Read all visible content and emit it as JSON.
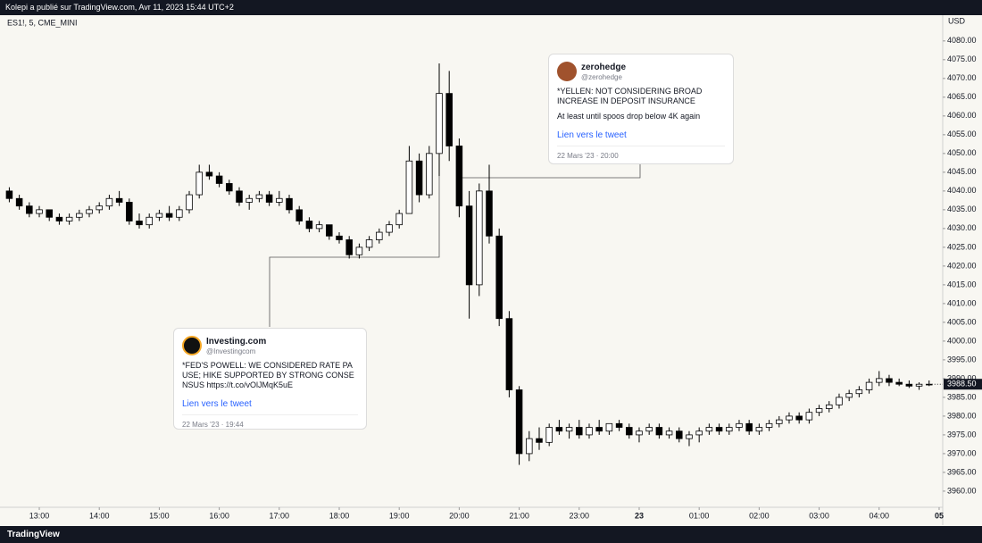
{
  "header": {
    "text": "Kolepi a publié sur TradingView.com, Avr 11, 2023 15:44 UTC+2"
  },
  "footer": {
    "brand": "TradingView"
  },
  "chart_data": {
    "type": "candlestick",
    "title": "ES1!, 5, CME_MINI",
    "currency": "USD",
    "up_color": "#ffffff",
    "down_color": "#000000",
    "outline_color": "#000000",
    "open": [
      4040,
      4038,
      4036,
      4034,
      4035,
      4033,
      4032,
      4033,
      4034,
      4035,
      4036,
      4038,
      4037,
      4032,
      4031,
      4033,
      4034,
      4033,
      4035,
      4039,
      4045,
      4044,
      4042,
      4040,
      4037,
      4038,
      4039,
      4037,
      4038,
      4035,
      4032,
      4030,
      4031,
      4028,
      4027,
      4023,
      4025,
      4027,
      4029,
      4031,
      4034,
      4048,
      4039,
      4050,
      4066,
      4052,
      4036,
      4015,
      4040,
      4028,
      4006,
      3987,
      3970,
      3974,
      3973,
      3977,
      3976,
      3977,
      3975,
      3977,
      3976,
      3978,
      3977,
      3975,
      3976,
      3977,
      3975,
      3976,
      3974,
      3975,
      3976,
      3977,
      3976,
      3977,
      3978,
      3976,
      3977,
      3978,
      3979,
      3980,
      3979,
      3981,
      3982,
      3983,
      3985,
      3986,
      3987,
      3989,
      3990,
      3989,
      3988.5,
      3988,
      3988.5
    ],
    "high": [
      4041,
      4039,
      4037,
      4036,
      4035,
      4034,
      4034,
      4035,
      4036,
      4037,
      4039,
      4040,
      4038,
      4034,
      4034,
      4035,
      4036,
      4036,
      4040,
      4047,
      4047,
      4045,
      4043,
      4041,
      4039,
      4040,
      4040,
      4040,
      4039,
      4036,
      4033,
      4032,
      4031,
      4029,
      4028,
      4026,
      4028,
      4030,
      4032,
      4035,
      4052,
      4050,
      4052,
      4074,
      4072,
      4054,
      4040,
      4042,
      4047,
      4030,
      4008,
      3988,
      3976,
      3977,
      3978,
      3979,
      3978,
      3979,
      3978,
      3979,
      3978,
      3979,
      3978,
      3977,
      3978,
      3978,
      3977,
      3977,
      3976,
      3977,
      3978,
      3978,
      3978,
      3979,
      3979,
      3978,
      3979,
      3980,
      3981,
      3981,
      3982,
      3983,
      3984,
      3986,
      3987,
      3988,
      3990,
      3992,
      3991,
      3990,
      3989.5,
      3989,
      3989.5
    ],
    "low": [
      4037,
      4035,
      4033,
      4033,
      4032,
      4031,
      4031,
      4032,
      4033,
      4034,
      4035,
      4036,
      4031,
      4030,
      4030,
      4032,
      4032,
      4032,
      4034,
      4038,
      4043,
      4041,
      4039,
      4036,
      4035,
      4037,
      4036,
      4036,
      4034,
      4031,
      4029,
      4029,
      4027,
      4026,
      4022,
      4022,
      4024,
      4026,
      4028,
      4030,
      4034,
      4037,
      4038,
      4044,
      4048,
      4033,
      4006,
      4012,
      4026,
      4004,
      3985,
      3967,
      3968,
      3971,
      3972,
      3975,
      3974,
      3974,
      3974,
      3975,
      3975,
      3976,
      3974,
      3973,
      3975,
      3974,
      3974,
      3973,
      3972,
      3973,
      3975,
      3975,
      3975,
      3976,
      3975,
      3975,
      3976,
      3977,
      3978,
      3978,
      3978,
      3980,
      3981,
      3982,
      3984,
      3985,
      3986,
      3988,
      3988,
      3988,
      3987.5,
      3987,
      3988
    ],
    "close": [
      4038,
      4036,
      4034,
      4035,
      4033,
      4032,
      4033,
      4034,
      4035,
      4036,
      4038,
      4037,
      4032,
      4031,
      4033,
      4034,
      4033,
      4035,
      4039,
      4045,
      4044,
      4042,
      4040,
      4037,
      4038,
      4039,
      4037,
      4038,
      4035,
      4032,
      4030,
      4031,
      4028,
      4027,
      4023,
      4025,
      4027,
      4029,
      4031,
      4034,
      4048,
      4039,
      4050,
      4066,
      4052,
      4036,
      4015,
      4040,
      4028,
      4006,
      3987,
      3970,
      3974,
      3973,
      3977,
      3976,
      3977,
      3975,
      3977,
      3976,
      3978,
      3977,
      3975,
      3976,
      3977,
      3975,
      3976,
      3974,
      3975,
      3976,
      3977,
      3976,
      3977,
      3978,
      3976,
      3977,
      3978,
      3979,
      3980,
      3979,
      3981,
      3982,
      3983,
      3985,
      3986,
      3987,
      3989,
      3990,
      3989,
      3988.5,
      3988,
      3988.5,
      3988.5
    ],
    "last_price": {
      "value": 3988.5,
      "label": "3988.50"
    },
    "xlim": [
      -0.93,
      93.36
    ],
    "xticks": [
      {
        "value": 3,
        "label": "13:00"
      },
      {
        "value": 9,
        "label": "14:00"
      },
      {
        "value": 15,
        "label": "15:00"
      },
      {
        "value": 21,
        "label": "16:00"
      },
      {
        "value": 27,
        "label": "17:00"
      },
      {
        "value": 33,
        "label": "18:00"
      },
      {
        "value": 39,
        "label": "19:00"
      },
      {
        "value": 45,
        "label": "20:00"
      },
      {
        "value": 51,
        "label": "21:00"
      },
      {
        "value": 57,
        "label": "23:00"
      },
      {
        "value": 63,
        "label": "23"
      },
      {
        "value": 69,
        "label": "01:00"
      },
      {
        "value": 75,
        "label": "02:00"
      },
      {
        "value": 81,
        "label": "03:00"
      },
      {
        "value": 87,
        "label": "04:00"
      },
      {
        "value": 93,
        "label": "05"
      }
    ],
    "ylim": [
      3955.7,
      4087.1
    ],
    "yticks": [
      {
        "value": 3960,
        "label": "3960.00"
      },
      {
        "value": 3965,
        "label": "3965.00"
      },
      {
        "value": 3970,
        "label": "3970.00"
      },
      {
        "value": 3975,
        "label": "3975.00"
      },
      {
        "value": 3980,
        "label": "3980.00"
      },
      {
        "value": 3985,
        "label": "3985.00"
      },
      {
        "value": 3990,
        "label": "3990.00"
      },
      {
        "value": 3995,
        "label": "3995.00"
      },
      {
        "value": 4000,
        "label": "4000.00"
      },
      {
        "value": 4005,
        "label": "4005.00"
      },
      {
        "value": 4010,
        "label": "4010.00"
      },
      {
        "value": 4015,
        "label": "4015.00"
      },
      {
        "value": 4020,
        "label": "4020.00"
      },
      {
        "value": 4025,
        "label": "4025.00"
      },
      {
        "value": 4030,
        "label": "4030.00"
      },
      {
        "value": 4035,
        "label": "4035.00"
      },
      {
        "value": 4040,
        "label": "4040.00"
      },
      {
        "value": 4045,
        "label": "4045.00"
      },
      {
        "value": 4050,
        "label": "4050.00"
      },
      {
        "value": 4055,
        "label": "4055.00"
      },
      {
        "value": 4060,
        "label": "4060.00"
      },
      {
        "value": 4065,
        "label": "4065.00"
      },
      {
        "value": 4070,
        "label": "4070.00"
      },
      {
        "value": 4075,
        "label": "4075.00"
      },
      {
        "value": 4080,
        "label": "4080.00"
      }
    ],
    "grid": false,
    "annotations": [
      {
        "name": "zerohedge",
        "handle": "@zerohedge",
        "text": "*YELLEN: NOT CONSIDERING BROAD INCREASE IN DEPOSIT INSURANCE",
        "comment": "At least until spoos drop below 4K again",
        "link": "Lien vers le tweet",
        "date": "22 Mars '23 · 20:00"
      },
      {
        "name": "Investing.com",
        "handle": "@Investingcom",
        "text": "*FED'S POWELL: WE CONSIDERED RATE PAUSE; HIKE SUPPORTED BY STRONG CONSENSUS https://t.co/vOlJMqK5uE",
        "link": "Lien vers le tweet",
        "date": "22 Mars '23 · 19:44"
      }
    ]
  }
}
